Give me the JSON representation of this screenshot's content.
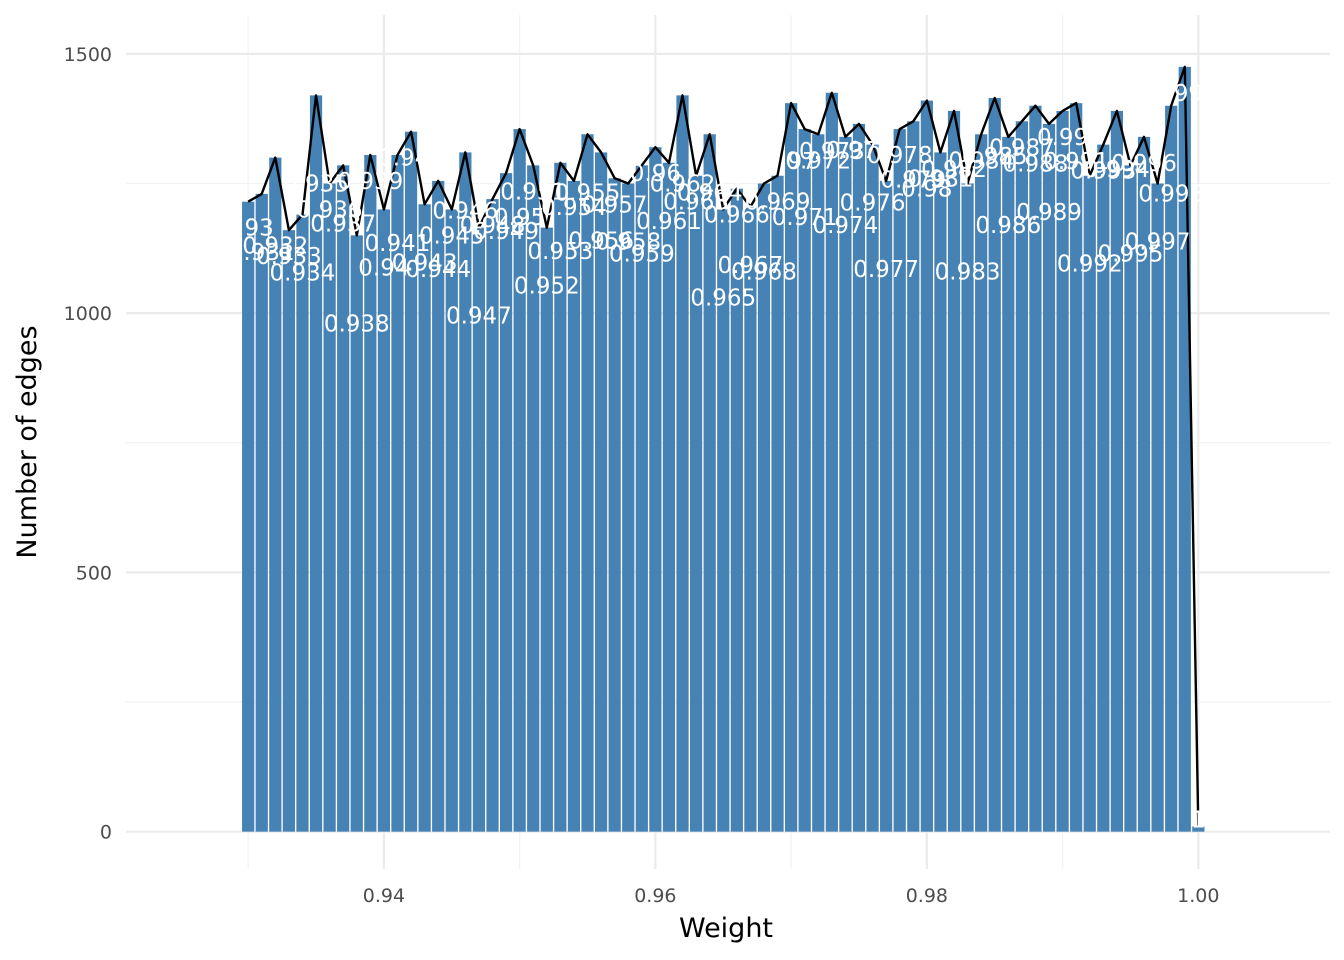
{
  "chart_data": {
    "type": "bar",
    "title": "",
    "xlabel": "Weight",
    "ylabel": "Number of edges",
    "xlim": [
      0.921,
      1.0097
    ],
    "ylim": [
      -72,
      1575
    ],
    "x_ticks": [
      0.94,
      0.96,
      0.98,
      1.0
    ],
    "x_tick_labels": [
      "0.94",
      "0.96",
      "0.98",
      "1.00"
    ],
    "y_ticks": [
      0,
      500,
      1000,
      1500
    ],
    "y_tick_labels": [
      "0",
      "500",
      "1000",
      "1500"
    ],
    "grid": true,
    "bar_color": "#4682b4",
    "line_color": "#000000",
    "label_color": "#ffffff",
    "overlay": "line through bar tops",
    "x": [
      0.93,
      0.931,
      0.932,
      0.933,
      0.934,
      0.935,
      0.936,
      0.937,
      0.938,
      0.939,
      0.94,
      0.941,
      0.942,
      0.943,
      0.944,
      0.945,
      0.946,
      0.947,
      0.948,
      0.949,
      0.95,
      0.951,
      0.952,
      0.953,
      0.954,
      0.955,
      0.956,
      0.957,
      0.958,
      0.959,
      0.96,
      0.961,
      0.962,
      0.963,
      0.964,
      0.965,
      0.966,
      0.967,
      0.968,
      0.969,
      0.97,
      0.971,
      0.972,
      0.973,
      0.974,
      0.975,
      0.976,
      0.977,
      0.978,
      0.979,
      0.98,
      0.981,
      0.982,
      0.983,
      0.984,
      0.985,
      0.986,
      0.987,
      0.988,
      0.989,
      0.99,
      0.991,
      0.992,
      0.993,
      0.994,
      0.995,
      0.996,
      0.997,
      0.998,
      0.999,
      1.0
    ],
    "values": [
      1215,
      1230,
      1300,
      1160,
      1190,
      1420,
      1250,
      1285,
      1150,
      1305,
      1200,
      1305,
      1350,
      1210,
      1255,
      1200,
      1310,
      1165,
      1220,
      1270,
      1355,
      1285,
      1165,
      1290,
      1255,
      1345,
      1310,
      1260,
      1250,
      1285,
      1320,
      1290,
      1420,
      1265,
      1345,
      1200,
      1240,
      1205,
      1250,
      1265,
      1405,
      1355,
      1345,
      1425,
      1340,
      1365,
      1325,
      1255,
      1355,
      1370,
      1410,
      1310,
      1390,
      1250,
      1345,
      1415,
      1340,
      1370,
      1400,
      1365,
      1390,
      1405,
      1265,
      1325,
      1390,
      1285,
      1340,
      1250,
      1400,
      1475,
      10
    ],
    "labels": [
      "0.93",
      "0.931",
      "0.932",
      "0.933",
      "0.934",
      "0.935",
      "0.936",
      "0.937",
      "0.938",
      "0.939",
      "0.94",
      "0.941",
      "0.942",
      "0.943",
      "0.944",
      "0.945",
      "0.946",
      "0.947",
      "0.948",
      "0.949",
      "0.95",
      "0.951",
      "0.952",
      "0.953",
      "0.954",
      "0.955",
      "0.956",
      "0.957",
      "0.958",
      "0.959",
      "0.96",
      "0.961",
      "0.962",
      "0.963",
      "0.964",
      "0.965",
      "0.966",
      "0.967",
      "0.968",
      "0.969",
      "0.97",
      "0.971",
      "0.972",
      "0.973",
      "0.974",
      "0.975",
      "0.976",
      "0.977",
      "0.978",
      "0.979",
      "0.98",
      "0.981",
      "0.982",
      "0.983",
      "0.984",
      "0.985",
      "0.986",
      "0.987",
      "0.988",
      "0.989",
      "0.99",
      "0.991",
      "0.992",
      "0.993",
      "0.994",
      "0.995",
      "0.996",
      "0.997",
      "0.998",
      "0.999",
      "1"
    ]
  }
}
